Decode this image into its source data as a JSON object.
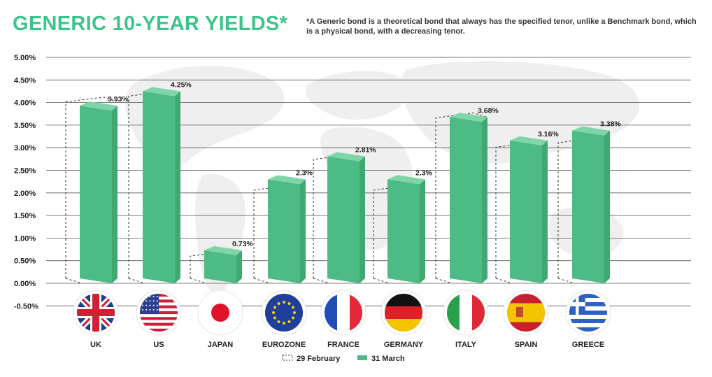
{
  "title": "GENERIC 10-YEAR YIELDS*",
  "footnote": "*A Generic bond is a theoretical bond that always has the specified tenor, unlike a Benchmark bond, which is a physical bond, with a decreasing tenor.",
  "colors": {
    "title": "#3cc48a",
    "bar_front": "#4cbb86",
    "bar_side": "#3fa873",
    "bar_top": "#7ed6a8",
    "grid": "#555555"
  },
  "chart_data": {
    "type": "bar",
    "title": "GENERIC 10-YEAR YIELDS*",
    "categories": [
      "UK",
      "US",
      "JAPAN",
      "EUROZONE",
      "FRANCE",
      "GERMANY",
      "ITALY",
      "SPAIN",
      "GREECE"
    ],
    "series": [
      {
        "name": "29 February",
        "style": "dashed-outline",
        "values": [
          4.12,
          4.25,
          0.71,
          2.17,
          2.85,
          2.17,
          3.77,
          3.12,
          3.22
        ]
      },
      {
        "name": "31 March",
        "style": "solid",
        "values": [
          3.93,
          4.25,
          0.73,
          2.3,
          2.81,
          2.3,
          3.68,
          3.16,
          3.38
        ]
      }
    ],
    "data_labels": [
      "3.93%",
      "4.25%",
      "0.73%",
      "2.3%",
      "2.81%",
      "2.3%",
      "3.68%",
      "3.16%",
      "3.38%"
    ],
    "y_ticks": [
      "5.00%",
      "4.50%",
      "4.00%",
      "3.50%",
      "3.00%",
      "2.50%",
      "2.00%",
      "1.50%",
      "1.00%",
      "0.50%",
      "0.00%",
      "-0.50%"
    ],
    "ylim": [
      -0.5,
      5.0
    ],
    "grid": true,
    "legend": {
      "position": "bottom-center",
      "entries": [
        "29 February",
        "31 March"
      ]
    },
    "flag_icons": [
      "uk-flag-icon",
      "us-flag-icon",
      "japan-flag-icon",
      "eu-flag-icon",
      "france-flag-icon",
      "germany-flag-icon",
      "italy-flag-icon",
      "spain-flag-icon",
      "greece-flag-icon"
    ]
  }
}
